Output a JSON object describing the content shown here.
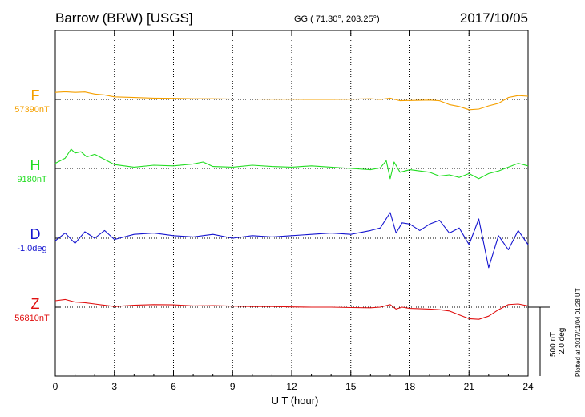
{
  "header": {
    "station": "Barrow (BRW)  [USGS]",
    "coords": "GG ( 71.30°, 203.25°)",
    "date": "2017/10/05"
  },
  "side_note": "Plotted at 2017/11/04 01:28 UT",
  "scale_bar": {
    "nt_label": "500 nT",
    "deg_label": "2.0 deg"
  },
  "chart_data": {
    "type": "line",
    "xlabel": "U T (hour)",
    "xlim": [
      0,
      24
    ],
    "xticks": [
      "0",
      "3",
      "6",
      "9",
      "12",
      "15",
      "18",
      "21",
      "24"
    ],
    "grid": "dotted vertical lines every 3 hours",
    "series": [
      {
        "name": "F",
        "baseline_label": "57390nT",
        "color": "#f5a000",
        "x": [
          0,
          0.5,
          1,
          1.5,
          2,
          2.5,
          3,
          4,
          5,
          6,
          7,
          8,
          9,
          10,
          11,
          12,
          13,
          14,
          15,
          16,
          16.5,
          17,
          17.5,
          18,
          19,
          19.5,
          20,
          20.5,
          21,
          21.5,
          22,
          22.5,
          23,
          23.5,
          24
        ],
        "values": [
          55,
          60,
          55,
          58,
          42,
          35,
          20,
          15,
          10,
          8,
          5,
          5,
          3,
          3,
          2,
          2,
          0,
          0,
          2,
          5,
          0,
          10,
          -10,
          -8,
          -5,
          -10,
          -40,
          -55,
          -80,
          -75,
          -50,
          -30,
          15,
          30,
          25
        ]
      },
      {
        "name": "H",
        "baseline_label": "9180nT",
        "color": "#22dd22",
        "x": [
          0,
          0.5,
          0.8,
          1,
          1.3,
          1.6,
          2,
          2.5,
          3,
          3.5,
          4,
          5,
          6,
          7,
          7.5,
          8,
          9,
          10,
          11,
          12,
          13,
          14,
          15,
          16,
          16.5,
          16.8,
          17,
          17.2,
          17.5,
          18,
          19,
          19.5,
          20,
          20.5,
          21,
          21.5,
          22,
          22.5,
          23,
          23.5,
          24
        ],
        "values": [
          40,
          80,
          150,
          120,
          130,
          90,
          110,
          70,
          30,
          20,
          10,
          25,
          20,
          35,
          50,
          15,
          10,
          25,
          15,
          10,
          20,
          10,
          0,
          -10,
          5,
          60,
          -80,
          50,
          -30,
          -10,
          -30,
          -60,
          -50,
          -70,
          -40,
          -80,
          -40,
          -20,
          10,
          40,
          20
        ]
      },
      {
        "name": "D",
        "baseline_label": "-1.0deg",
        "color": "#1515d0",
        "x": [
          0,
          0.5,
          1,
          1.5,
          2,
          2.5,
          3,
          4,
          5,
          6,
          7,
          8,
          9,
          10,
          11,
          12,
          13,
          14,
          15,
          16,
          16.5,
          17,
          17.3,
          17.6,
          18,
          18.5,
          19,
          19.5,
          20,
          20.5,
          21,
          21.5,
          22,
          22.5,
          23,
          23.5,
          24
        ],
        "values": [
          -20,
          40,
          -40,
          50,
          0,
          60,
          -10,
          30,
          40,
          20,
          10,
          30,
          0,
          20,
          10,
          20,
          30,
          40,
          30,
          60,
          80,
          200,
          40,
          120,
          110,
          60,
          110,
          140,
          40,
          80,
          -50,
          150,
          -230,
          20,
          -90,
          60,
          -50
        ]
      },
      {
        "name": "Z",
        "baseline_label": "56810nT",
        "color": "#e01010",
        "x": [
          0,
          0.5,
          1,
          1.5,
          2,
          2.5,
          3,
          4,
          5,
          6,
          7,
          8,
          9,
          10,
          11,
          12,
          13,
          14,
          15,
          16,
          16.5,
          17,
          17.3,
          17.6,
          18,
          19,
          19.5,
          20,
          20.5,
          21,
          21.5,
          22,
          22.5,
          23,
          23.5,
          24
        ],
        "values": [
          50,
          60,
          40,
          35,
          25,
          15,
          5,
          15,
          20,
          18,
          10,
          12,
          8,
          5,
          5,
          2,
          0,
          0,
          -3,
          -5,
          0,
          20,
          -15,
          0,
          -10,
          -15,
          -20,
          -30,
          -60,
          -90,
          -95,
          -70,
          -20,
          20,
          25,
          10
        ]
      }
    ]
  }
}
